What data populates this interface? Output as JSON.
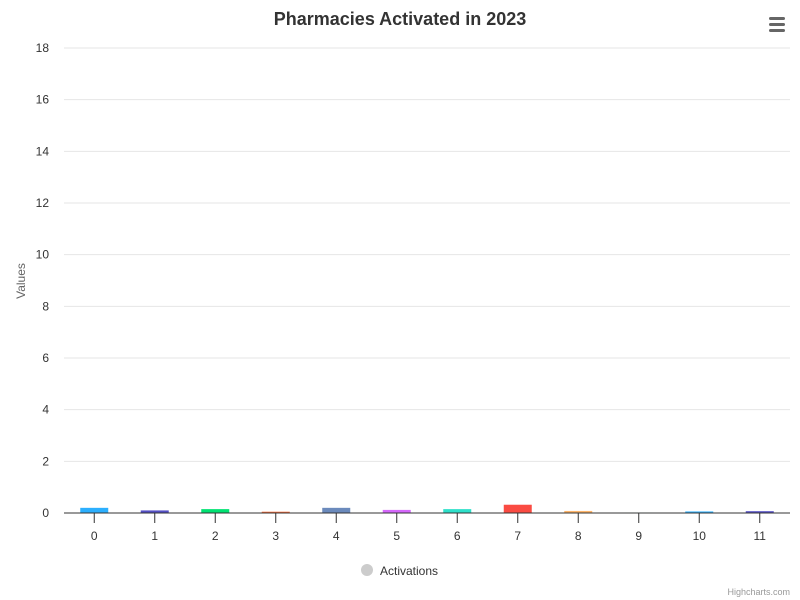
{
  "chart_data": {
    "type": "bar",
    "title": "Pharmacies Activated in 2023",
    "xlabel": "",
    "ylabel": "Values",
    "ylim": [
      0,
      18
    ],
    "y_ticks": [
      "0",
      "2",
      "4",
      "6",
      "8",
      "10",
      "12",
      "14",
      "16",
      "18"
    ],
    "categories": [
      "0",
      "1",
      "2",
      "3",
      "4",
      "5",
      "6",
      "7",
      "8",
      "9",
      "10",
      "11"
    ],
    "series": [
      {
        "name": "Activations",
        "values": [
          0.2,
          0.1,
          0.15,
          0.05,
          0.2,
          0.12,
          0.15,
          0.32,
          0.08,
          0.02,
          0.06,
          0.07
        ],
        "colors": [
          "#2caffe",
          "#544fc5",
          "#00e272",
          "#fe6a35",
          "#6b8abc",
          "#d568fb",
          "#2ee0ca",
          "#fa4b42",
          "#feb56a",
          "#91e8e1",
          "#2caffe",
          "#544fc5"
        ]
      }
    ],
    "grid": true,
    "legend_position": "bottom-center"
  },
  "legend": {
    "label": "Activations",
    "marker_color": "#cccccc"
  },
  "credits": "Highcharts.com",
  "menu_icon": "hamburger-menu-icon"
}
